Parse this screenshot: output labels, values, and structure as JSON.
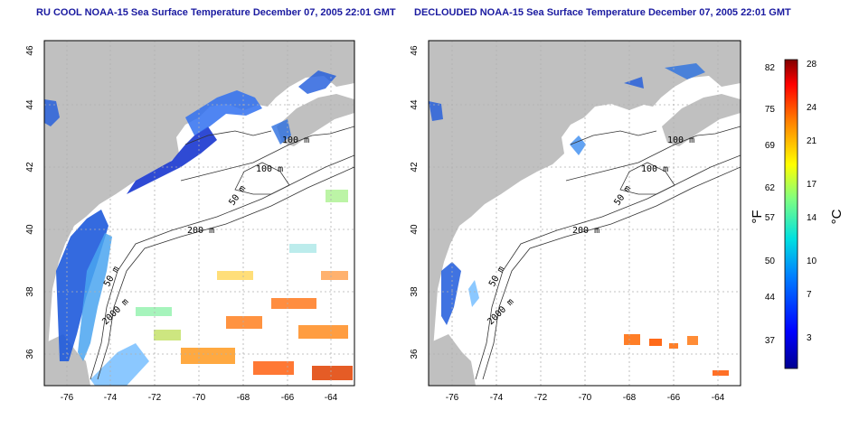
{
  "titles": {
    "left": "RU COOL NOAA-15 Sea Surface Temperature December 07, 2005 22:01 GMT",
    "right": "DECLOUDED NOAA-15 Sea Surface Temperature December 07, 2005 22:01 GMT"
  },
  "axes": {
    "longitude_ticks": [
      "-76",
      "-74",
      "-72",
      "-70",
      "-68",
      "-66",
      "-64"
    ],
    "latitude_ticks": [
      "46",
      "44",
      "42",
      "40",
      "38",
      "36"
    ]
  },
  "isobath_labels": [
    "100 m",
    "100 m",
    "50 m",
    "200 m",
    "50 m",
    "2000 m"
  ],
  "colorbar": {
    "fahrenheit_unit": "°F",
    "celsius_unit": "°C",
    "fahrenheit_ticks": [
      "82",
      "75",
      "69",
      "62",
      "57",
      "50",
      "44",
      "37"
    ],
    "celsius_ticks": [
      "28",
      "24",
      "21",
      "17",
      "14",
      "10",
      "7",
      "3"
    ]
  },
  "colors": {
    "land": "#c0c0c0",
    "title": "#1a1aa0"
  }
}
